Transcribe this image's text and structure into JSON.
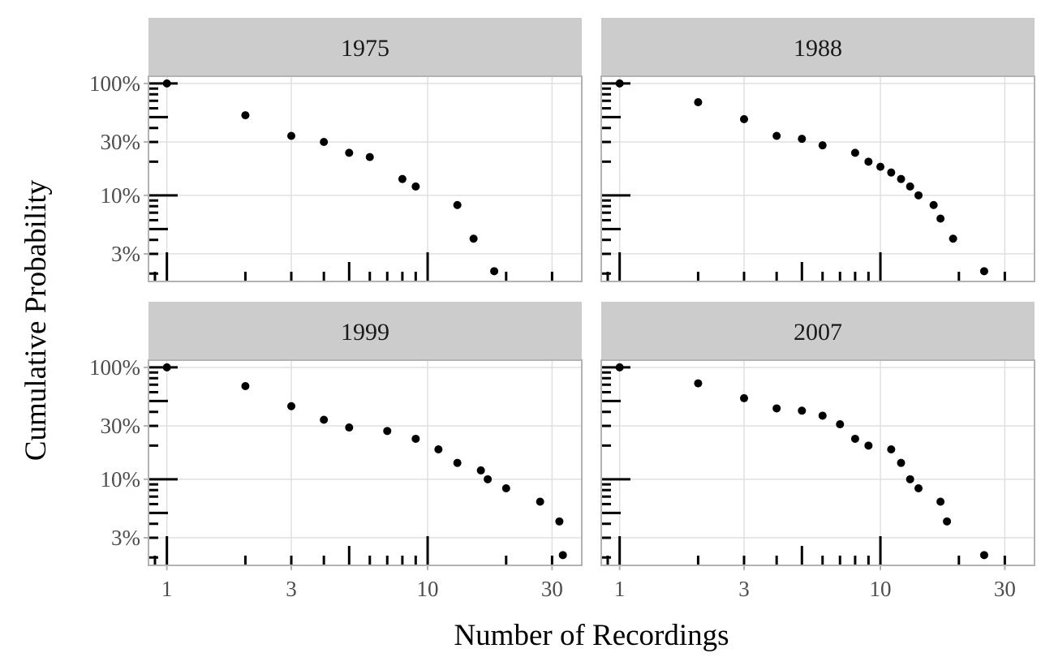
{
  "chart_data": {
    "type": "scatter",
    "xlabel": "Number of Recordings",
    "ylabel": "Cumulative Probability",
    "x_scale": "log10",
    "y_scale": "log10",
    "xlim": [
      0.85,
      39
    ],
    "ylim": [
      0.017,
      1.16
    ],
    "x_ticks": [
      1,
      3,
      10,
      30
    ],
    "x_tick_labels": [
      "1",
      "3",
      "10",
      "30"
    ],
    "y_ticks": [
      0.03,
      0.1,
      0.3,
      1.0
    ],
    "y_tick_labels": [
      "3%",
      "10%",
      "30%",
      "100%"
    ],
    "grid": true,
    "log_ticks": true,
    "point_color": "#000000",
    "strip_color": "#cccccc",
    "panels": [
      {
        "title": "1975",
        "x": [
          1,
          2,
          3,
          4,
          5,
          6,
          8,
          9,
          13,
          15,
          18
        ],
        "y": [
          1.0,
          0.52,
          0.34,
          0.3,
          0.24,
          0.22,
          0.14,
          0.12,
          0.082,
          0.041,
          0.021
        ]
      },
      {
        "title": "1988",
        "x": [
          1,
          2,
          3,
          4,
          5,
          6,
          8,
          9,
          10,
          11,
          12,
          13,
          14,
          16,
          17,
          19,
          25
        ],
        "y": [
          1.0,
          0.68,
          0.48,
          0.34,
          0.32,
          0.28,
          0.24,
          0.2,
          0.18,
          0.16,
          0.14,
          0.12,
          0.1,
          0.082,
          0.062,
          0.041,
          0.021
        ]
      },
      {
        "title": "1999",
        "x": [
          1,
          2,
          3,
          4,
          5,
          7,
          9,
          11,
          13,
          16,
          17,
          20,
          27,
          32,
          33
        ],
        "y": [
          1.0,
          0.68,
          0.45,
          0.34,
          0.29,
          0.27,
          0.23,
          0.185,
          0.14,
          0.12,
          0.1,
          0.083,
          0.063,
          0.042,
          0.021
        ]
      },
      {
        "title": "2007",
        "x": [
          1,
          2,
          3,
          4,
          5,
          6,
          7,
          8,
          9,
          11,
          12,
          13,
          14,
          17,
          18,
          25
        ],
        "y": [
          1.0,
          0.72,
          0.53,
          0.43,
          0.41,
          0.37,
          0.31,
          0.23,
          0.2,
          0.185,
          0.14,
          0.1,
          0.083,
          0.063,
          0.042,
          0.021
        ]
      }
    ]
  }
}
